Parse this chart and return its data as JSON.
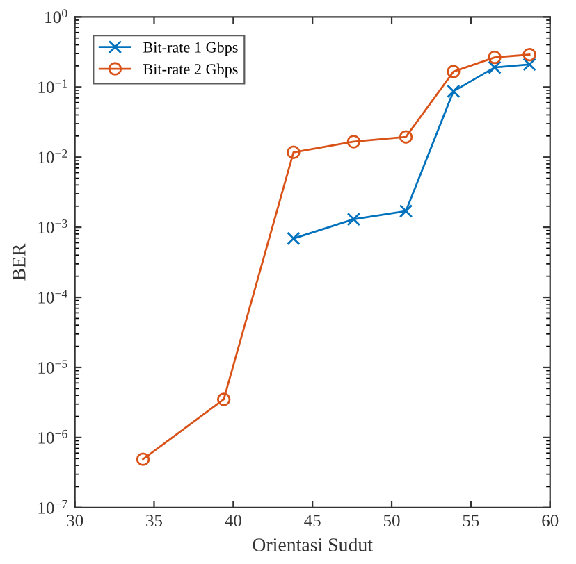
{
  "chart_data": {
    "type": "line",
    "xlabel": "Orientasi Sudut",
    "ylabel": "BER",
    "log": "y",
    "grid": false,
    "legend": "top left",
    "xlim": [
      30,
      60
    ],
    "xticks": [
      30,
      35,
      40,
      45,
      50,
      55,
      60
    ],
    "ylim": [
      1e-07,
      1
    ],
    "yticks": [
      {
        "value": 1e-07,
        "label": "10$^{−7}$"
      },
      {
        "value": 1e-06,
        "label": "10$^{−6}$"
      },
      {
        "value": 1e-05,
        "label": "10$^{−5}$"
      },
      {
        "value": 0.0001,
        "label": "10$^{−4}$"
      },
      {
        "value": 0.001,
        "label": "10$^{−3}$"
      },
      {
        "value": 0.01,
        "label": "10$^{−2}$"
      },
      {
        "value": 0.1,
        "label": "10$^{−1}$"
      },
      {
        "value": 1,
        "label": "10$^{0}$"
      }
    ],
    "series": [
      {
        "name": "Bit-rate 1 Gbps",
        "color": "#0072bd",
        "marker": "cross",
        "x": [
          43.8,
          47.6,
          50.9,
          53.9,
          56.5,
          58.7
        ],
        "values": [
          0.00069,
          0.0013,
          0.0017,
          0.087,
          0.19,
          0.21
        ]
      },
      {
        "name": "Bit-rate 2 Gbps",
        "color": "#d95319",
        "marker": "circle",
        "x": [
          34.3,
          39.4,
          43.8,
          47.6,
          50.9,
          53.9,
          56.5,
          58.7
        ],
        "values": [
          4.9e-07,
          3.5e-06,
          0.0117,
          0.0166,
          0.0194,
          0.166,
          0.265,
          0.29
        ]
      }
    ]
  }
}
